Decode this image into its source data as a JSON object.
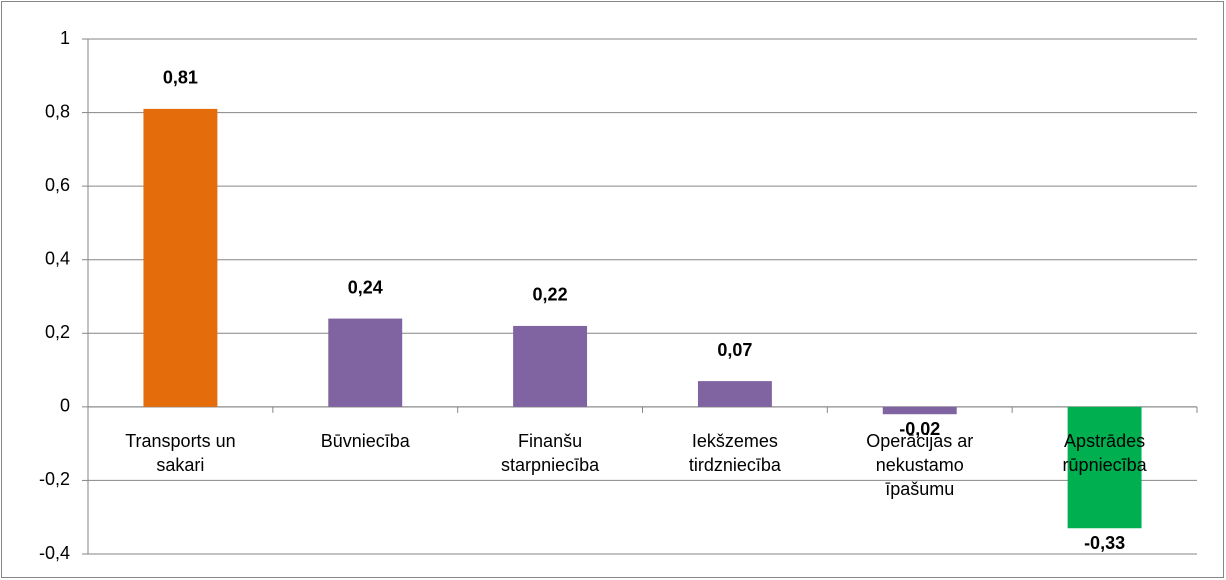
{
  "chart_data": {
    "type": "bar",
    "categories": [
      "Transports un sakari",
      "Būvniecība",
      "Finanšu starpniecība",
      "Iekšzemes tirdzniecība",
      "Operācijas ar nekustamo īpašumu",
      "Apstrādes rūpniecība"
    ],
    "values": [
      0.81,
      0.24,
      0.22,
      0.07,
      -0.02,
      -0.33
    ],
    "value_labels": [
      "0,81",
      "0,24",
      "0,22",
      "0,07",
      "-0,02",
      "-0,33"
    ],
    "colors": [
      "#e46c0a",
      "#8064a2",
      "#8064a2",
      "#8064a2",
      "#8064a2",
      "#00b050"
    ],
    "ylim": [
      -0.4,
      1
    ],
    "yticks": [
      {
        "value": -0.4,
        "label": "-0,4"
      },
      {
        "value": -0.2,
        "label": "-0,2"
      },
      0,
      {
        "value": 0.2,
        "label": "0,2"
      },
      {
        "value": 0.4,
        "label": "0,4"
      },
      {
        "value": 0.6,
        "label": "0,6"
      },
      {
        "value": 0.8,
        "label": "0,8"
      },
      1
    ],
    "grid": true
  }
}
